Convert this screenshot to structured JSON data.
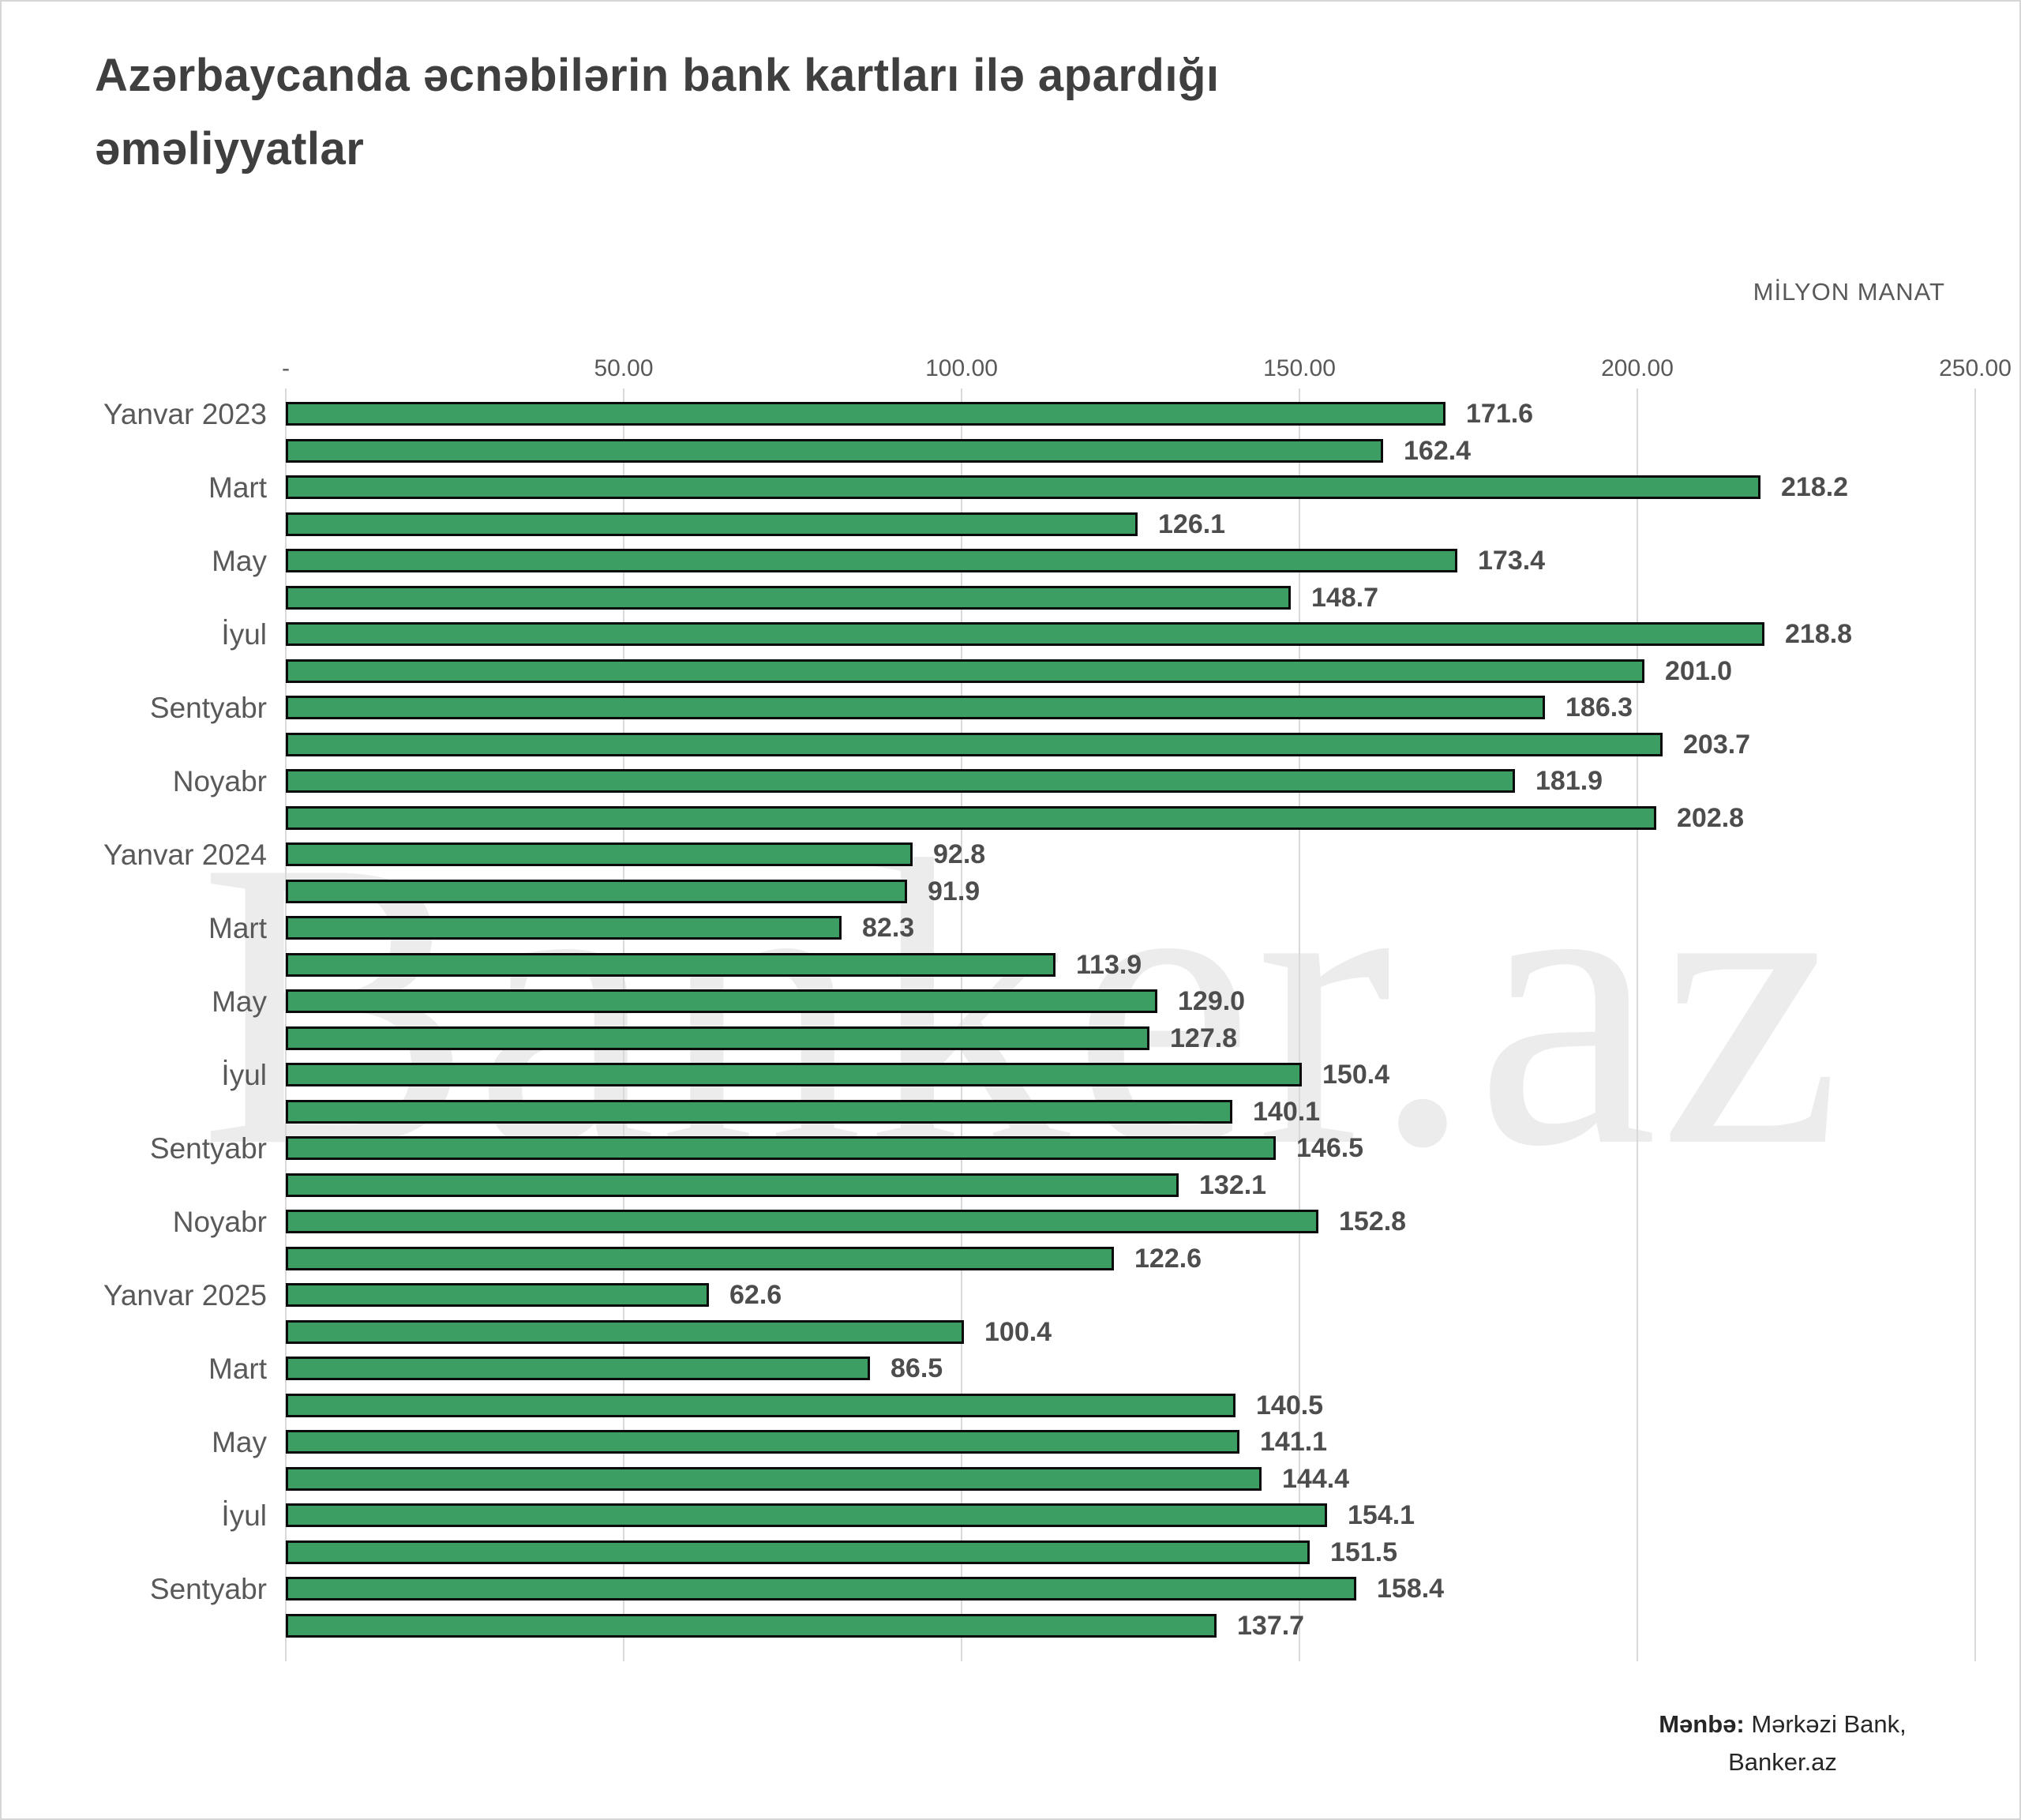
{
  "title": "Azərbaycanda əcnəbilərin bank kartları ilə apardığı əməliyyatlar",
  "unit_label": "MİLYON MANAT",
  "watermark": "Banker.az",
  "source": {
    "label": "Mənbə:",
    "line1": " Mərkəzi Bank,",
    "line2": "Banker.az"
  },
  "colors": {
    "bar_fill": "#3d9e63",
    "bar_border": "#0b0b0b",
    "gridline": "#d9d9d9",
    "title_text": "#3f3f3f",
    "axis_text": "#595959",
    "value_text": "#4d4d4d",
    "watermark_text": "#ececec",
    "source_text": "#262626"
  },
  "chart_data": {
    "type": "bar",
    "orientation": "horizontal",
    "title": "Azərbaycanda əcnəbilərin bank kartları ilə apardığı əməliyyatlar",
    "xlabel": "MİLYON MANAT",
    "ylabel": "",
    "xlim": [
      0,
      250
    ],
    "grid": true,
    "x_ticks": [
      "-",
      "50.00",
      "100.00",
      "150.00",
      "200.00",
      "250.00"
    ],
    "x_tick_values": [
      0,
      50,
      100,
      150,
      200,
      250
    ],
    "categories": [
      "Yanvar 2023",
      "",
      "Mart",
      "",
      "May",
      "",
      "İyul",
      "",
      "Sentyabr",
      "",
      "Noyabr",
      "",
      "Yanvar 2024",
      "",
      "Mart",
      "",
      "May",
      "",
      "İyul",
      "",
      "Sentyabr",
      "",
      "Noyabr",
      "",
      "Yanvar 2025",
      "",
      "Mart",
      "",
      "May",
      "",
      "İyul",
      "",
      "Sentyabr",
      ""
    ],
    "values": [
      171.6,
      162.4,
      218.2,
      126.1,
      173.4,
      148.7,
      218.8,
      201.0,
      186.3,
      203.7,
      181.9,
      202.8,
      92.8,
      91.9,
      82.3,
      113.9,
      129.0,
      127.8,
      150.4,
      140.1,
      146.5,
      132.1,
      152.8,
      122.6,
      62.6,
      100.4,
      86.5,
      140.5,
      141.1,
      144.4,
      154.1,
      151.5,
      158.4,
      137.7
    ],
    "value_labels": [
      "171.6",
      "162.4",
      "218.2",
      "126.1",
      "173.4",
      "148.7",
      "218.8",
      "201.0",
      "186.3",
      "203.7",
      "181.9",
      "202.8",
      "92.8",
      "91.9",
      "82.3",
      "113.9",
      "129.0",
      "127.8",
      "150.4",
      "140.1",
      "146.5",
      "132.1",
      "152.8",
      "122.6",
      "62.6",
      "100.4",
      "86.5",
      "140.5",
      "141.1",
      "144.4",
      "154.1",
      "151.5",
      "158.4",
      "137.7"
    ]
  }
}
